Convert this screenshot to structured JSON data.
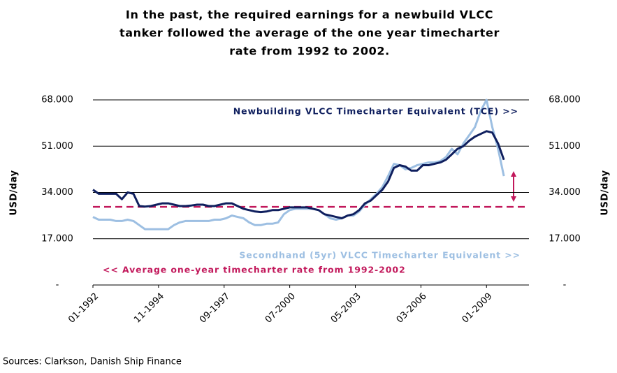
{
  "chart_data": {
    "type": "line",
    "title": [
      "In the past, the required earnings for a newbuild VLCC",
      "tanker followed the average of the one year timecharter",
      "rate from 1992 to 2002."
    ],
    "ylabel": "USD/day",
    "y2label": "USD/day",
    "source": "Sources: Clarkson, Danish Ship Finance",
    "x": [
      "01-1992",
      "04-1992",
      "07-1992",
      "10-1992",
      "01-1993",
      "04-1993",
      "07-1993",
      "10-1993",
      "01-1994",
      "04-1994",
      "07-1994",
      "10-1994",
      "01-1995",
      "04-1995",
      "07-1995",
      "10-1995",
      "01-1996",
      "04-1996",
      "07-1996",
      "10-1996",
      "01-1997",
      "04-1997",
      "07-1997",
      "10-1997",
      "01-1998",
      "04-1998",
      "07-1998",
      "10-1998",
      "01-1999",
      "04-1999",
      "07-1999",
      "10-1999",
      "01-2000",
      "04-2000",
      "07-2000",
      "10-2000",
      "01-2001",
      "04-2001",
      "07-2001",
      "10-2001",
      "01-2002",
      "04-2002",
      "07-2002",
      "10-2002",
      "01-2003",
      "04-2003",
      "07-2003",
      "10-2003",
      "01-2004",
      "04-2004",
      "07-2004",
      "10-2004",
      "01-2005",
      "04-2005",
      "07-2005",
      "10-2005",
      "01-2006",
      "04-2006",
      "07-2006",
      "10-2006",
      "01-2007",
      "04-2007",
      "07-2007",
      "10-2007",
      "01-2008",
      "04-2008",
      "07-2008",
      "10-2008",
      "01-2009",
      "04-2009",
      "07-2009",
      "10-2009"
    ],
    "xlim": [
      "01-1992",
      "11-2010"
    ],
    "xticks": [
      "01-1992",
      "11-1994",
      "09-1997",
      "07-2000",
      "05-2003",
      "03-2006",
      "01-2009"
    ],
    "series": [
      {
        "name": "Newbuilding VLCC Timecharter Equivalent (TCE) >>",
        "color": "#0f1f5e",
        "values": [
          35000,
          33500,
          33500,
          33500,
          33500,
          31500,
          34000,
          33500,
          29000,
          28800,
          29000,
          29500,
          30000,
          30000,
          29500,
          29000,
          29000,
          29200,
          29500,
          29500,
          29000,
          29000,
          29500,
          30000,
          30000,
          29000,
          28000,
          27500,
          27000,
          26800,
          27000,
          27500,
          27500,
          28000,
          28500,
          28500,
          28500,
          28500,
          28000,
          27500,
          26000,
          25500,
          25000,
          24500,
          25500,
          26000,
          27500,
          30000,
          31000,
          33000,
          35000,
          38000,
          43000,
          44000,
          43500,
          42000,
          42000,
          44000,
          44000,
          44500,
          45000,
          46000,
          48000,
          50000,
          51000,
          53000,
          54500,
          55500,
          56500,
          56000,
          52000,
          46000
        ]
      },
      {
        "name": "Secondhand (5yr) VLCC Timecharter Equivalent >>",
        "color": "#9dbfe2",
        "values": [
          25000,
          24000,
          24000,
          24000,
          23500,
          23500,
          24000,
          23500,
          22000,
          20500,
          20500,
          20500,
          20500,
          20500,
          22000,
          23000,
          23500,
          23500,
          23500,
          23500,
          23500,
          24000,
          24000,
          24500,
          25500,
          25000,
          24500,
          23000,
          22000,
          22000,
          22500,
          22500,
          23000,
          26000,
          27500,
          28000,
          28000,
          28000,
          28000,
          27500,
          26000,
          24500,
          24000,
          24500,
          25500,
          25500,
          27000,
          29500,
          31500,
          33500,
          36000,
          40000,
          44500,
          44000,
          42500,
          43000,
          44000,
          44500,
          45000,
          45000,
          45500,
          47000,
          50000,
          48000,
          52000,
          55000,
          58000,
          64000,
          68000,
          58000,
          50000,
          40000
        ]
      }
    ],
    "reference_line": {
      "name": "<< Average one-year timecharter rate from 1992-2002",
      "value": 28700,
      "color": "#c2185b"
    },
    "ylim": [
      0,
      68000
    ],
    "yticks": [
      {
        "value": 0,
        "label": "-"
      },
      {
        "value": 17000,
        "label": "17.000"
      },
      {
        "value": 34000,
        "label": "34.000"
      },
      {
        "value": 51000,
        "label": "51.000"
      },
      {
        "value": 68000,
        "label": "68.000"
      }
    ],
    "y2lim": [
      0,
      68000
    ],
    "y2ticks": [
      {
        "value": 0,
        "label": "-"
      },
      {
        "value": 17000,
        "label": "17.000"
      },
      {
        "value": 34000,
        "label": "34.000"
      },
      {
        "value": 51000,
        "label": "51.000"
      },
      {
        "value": 68000,
        "label": "68.000"
      }
    ],
    "grid": true
  }
}
